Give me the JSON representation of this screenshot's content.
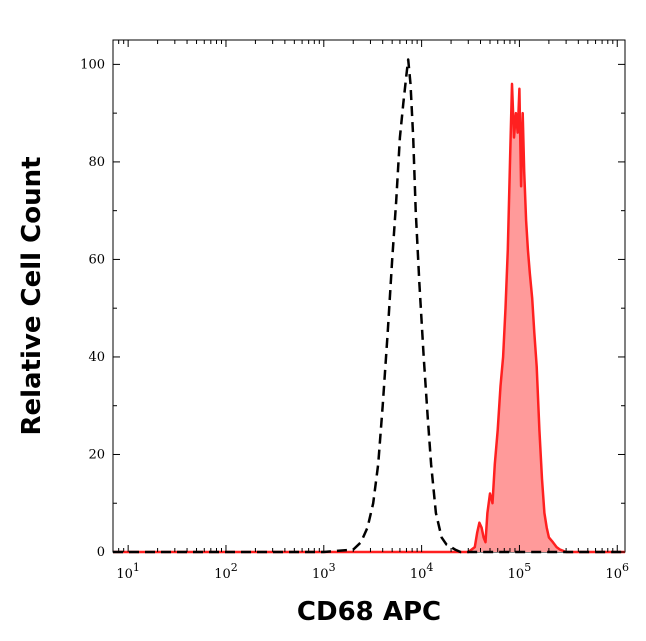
{
  "chart_data": {
    "type": "area",
    "title": "",
    "xlabel": "CD68 APC",
    "ylabel": "Relative Cell Count",
    "x_scale": "log",
    "xlim": [
      7,
      1200000
    ],
    "ylim": [
      0,
      105
    ],
    "grid": false,
    "x_ticks": [
      {
        "value": 10,
        "base": "10",
        "exp": "1"
      },
      {
        "value": 100,
        "base": "10",
        "exp": "2"
      },
      {
        "value": 1000,
        "base": "10",
        "exp": "3"
      },
      {
        "value": 10000,
        "base": "10",
        "exp": "4"
      },
      {
        "value": 100000,
        "base": "10",
        "exp": "5"
      },
      {
        "value": 1000000,
        "base": "10",
        "exp": "6"
      }
    ],
    "y_ticks": [
      {
        "value": 0,
        "label": "0"
      },
      {
        "value": 20,
        "label": "20"
      },
      {
        "value": 40,
        "label": "40"
      },
      {
        "value": 60,
        "label": "60"
      },
      {
        "value": 80,
        "label": "80"
      },
      {
        "value": 100,
        "label": "100"
      }
    ],
    "series": [
      {
        "style": "dashed",
        "color": "#000000",
        "x": [
          7,
          1000,
          2000,
          2400,
          2800,
          3200,
          3600,
          4000,
          4500,
          5000,
          5500,
          6000,
          6500,
          7000,
          7300,
          7700,
          8200,
          8700,
          9500,
          10500,
          11500,
          12500,
          14000,
          16000,
          18000,
          20000,
          22000,
          25000,
          1200000
        ],
        "y": [
          0,
          0,
          0.5,
          2,
          5,
          10,
          18,
          30,
          45,
          60,
          72,
          85,
          92,
          98,
          101,
          96,
          85,
          70,
          55,
          40,
          28,
          18,
          8,
          3,
          1.5,
          1,
          0.5,
          0,
          0
        ]
      },
      {
        "style": "filled",
        "color": "#ff2020",
        "fill": "#ff9a9a",
        "x": [
          7,
          30000,
          35000,
          37000,
          39000,
          41000,
          43000,
          45000,
          47000,
          50000,
          53000,
          56000,
          60000,
          64000,
          68000,
          72000,
          76000,
          80000,
          84000,
          88000,
          92000,
          96000,
          100000,
          104000,
          108000,
          112000,
          117000,
          122000,
          128000,
          135000,
          142000,
          150000,
          160000,
          170000,
          180000,
          190000,
          200000,
          220000,
          240000,
          260000,
          300000,
          1200000
        ],
        "y": [
          0,
          0,
          1,
          4,
          6,
          5,
          3,
          2,
          8,
          12,
          10,
          18,
          25,
          34,
          40,
          50,
          62,
          80,
          96,
          85,
          90,
          86,
          95,
          75,
          90,
          78,
          68,
          62,
          57,
          52,
          45,
          38,
          25,
          15,
          8,
          5,
          3,
          2,
          1,
          0.5,
          0,
          0
        ]
      }
    ]
  }
}
